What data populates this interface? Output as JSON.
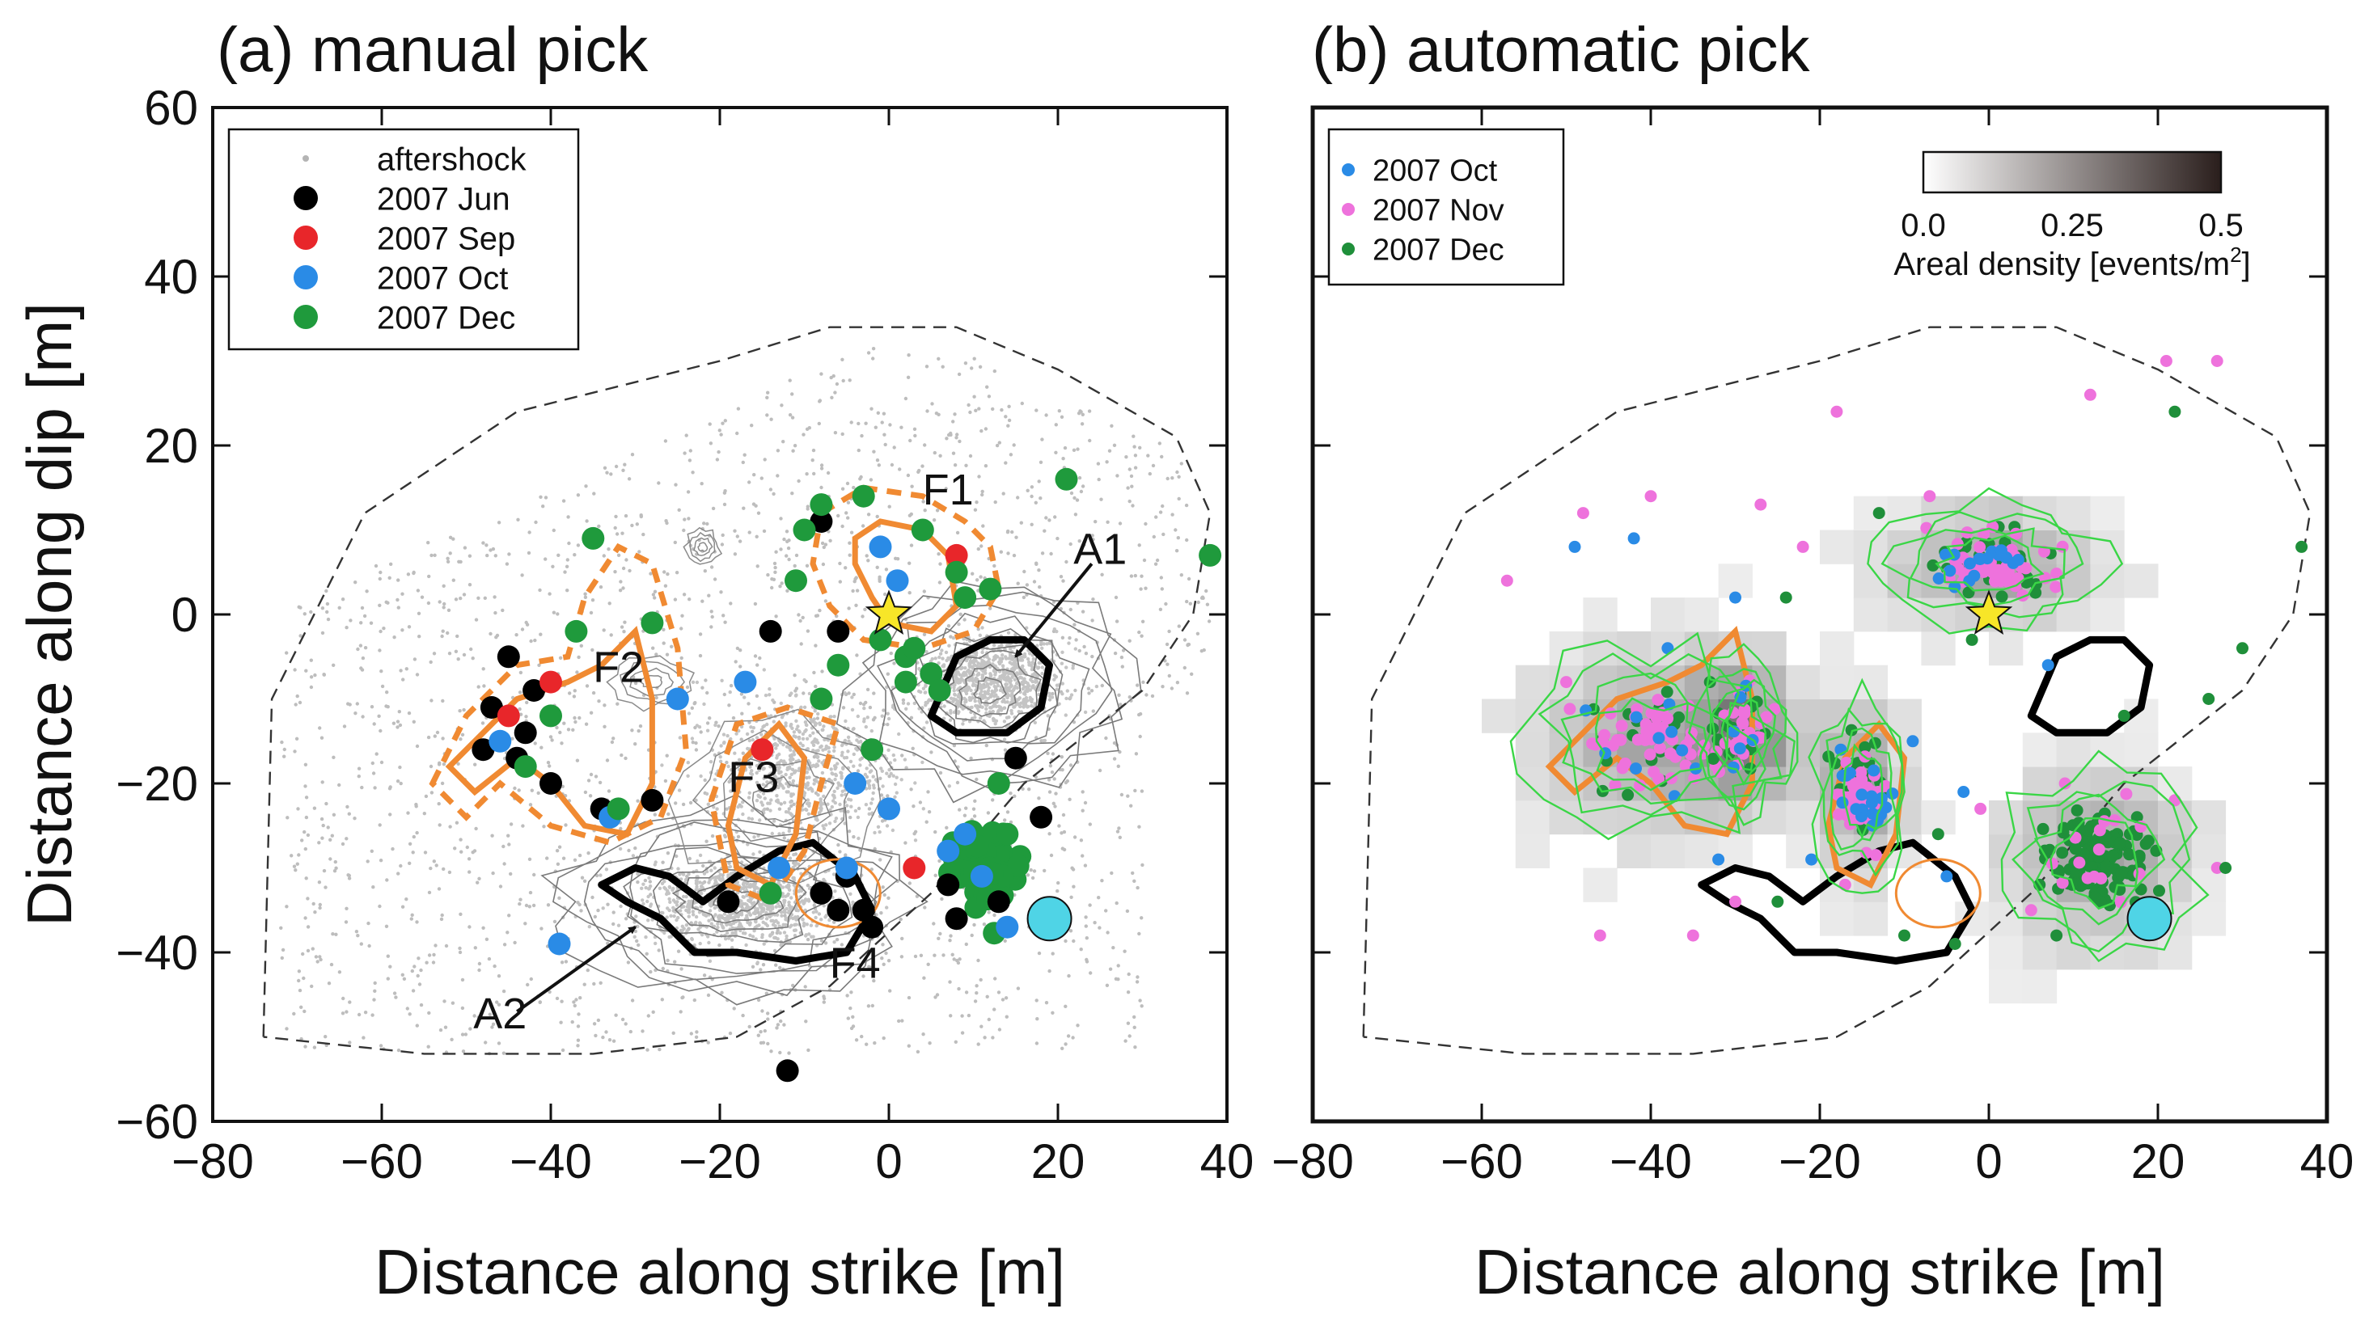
{
  "chart_data": [
    {
      "type": "scatter",
      "panel_title": "(a) manual pick",
      "xlabel": "Distance along strike [m]",
      "ylabel": "Distance along dip [m]",
      "xlim": [
        -80,
        40
      ],
      "ylim": [
        -60,
        60
      ],
      "x_ticks": [
        -80,
        -60,
        -40,
        -20,
        0,
        20,
        40
      ],
      "y_ticks": [
        -60,
        -40,
        -20,
        0,
        20,
        40,
        60
      ],
      "legend_position": "top-left",
      "legend": [
        {
          "label": "aftershock",
          "color": "#b4b4b4",
          "marker": "small-dot"
        },
        {
          "label": "2007 Jun",
          "color": "#000000",
          "marker": "dot"
        },
        {
          "label": "2007 Sep",
          "color": "#e8262a",
          "marker": "dot"
        },
        {
          "label": "2007 Oct",
          "color": "#2a8be6",
          "marker": "dot"
        },
        {
          "label": "2007 Dec",
          "color": "#1f9a3c",
          "marker": "dot"
        }
      ],
      "series": [
        {
          "name": "2007 Jun",
          "color": "#000000",
          "points": [
            [
              -47,
              -11
            ],
            [
              -45,
              -5
            ],
            [
              -42,
              -9
            ],
            [
              -48,
              -16
            ],
            [
              -44,
              -17
            ],
            [
              -40,
              -20
            ],
            [
              -43,
              -14
            ],
            [
              -34,
              -23
            ],
            [
              -28,
              -22
            ],
            [
              -19,
              -34
            ],
            [
              -14,
              -2
            ],
            [
              -8,
              11
            ],
            [
              -8,
              -33
            ],
            [
              -5,
              -31
            ],
            [
              -6,
              -35
            ],
            [
              -3,
              -35
            ],
            [
              -2,
              -37
            ],
            [
              -12,
              -54
            ],
            [
              7,
              -32
            ],
            [
              13,
              -34
            ],
            [
              15,
              -17
            ],
            [
              18,
              -24
            ],
            [
              -6,
              -2
            ],
            [
              8,
              -36
            ]
          ]
        },
        {
          "name": "2007 Sep",
          "color": "#e8262a",
          "points": [
            [
              -45,
              -12
            ],
            [
              -40,
              -8
            ],
            [
              -15,
              -16
            ],
            [
              3,
              -30
            ],
            [
              8,
              7
            ]
          ]
        },
        {
          "name": "2007 Oct",
          "color": "#2a8be6",
          "points": [
            [
              -46,
              -15
            ],
            [
              -33,
              -24
            ],
            [
              -39,
              -39
            ],
            [
              -17,
              -8
            ],
            [
              -5,
              -30
            ],
            [
              -4,
              -20
            ],
            [
              0,
              -23
            ],
            [
              -1,
              8
            ],
            [
              1,
              4
            ],
            [
              9,
              -26
            ],
            [
              11,
              -31
            ],
            [
              14,
              -37
            ],
            [
              7,
              -28
            ],
            [
              -13,
              -30
            ],
            [
              -25,
              -10
            ]
          ]
        },
        {
          "name": "2007 Dec",
          "color": "#1f9a3c",
          "points": [
            [
              -43,
              -18
            ],
            [
              -40,
              -12
            ],
            [
              -37,
              -2
            ],
            [
              -35,
              9
            ],
            [
              -32,
              -23
            ],
            [
              -28,
              -1
            ],
            [
              -14,
              -33
            ],
            [
              -8,
              13
            ],
            [
              -3,
              14
            ],
            [
              -6,
              -6
            ],
            [
              -2,
              -16
            ],
            [
              2,
              -5
            ],
            [
              -1,
              -3
            ],
            [
              3,
              -4
            ],
            [
              5,
              -7
            ],
            [
              9,
              2
            ],
            [
              12,
              3
            ],
            [
              -11,
              4
            ],
            [
              -10,
              10
            ],
            [
              4,
              10
            ],
            [
              8,
              5
            ],
            [
              13,
              -20
            ],
            [
              14,
              -26
            ],
            [
              21,
              16
            ],
            [
              38,
              7
            ],
            [
              -8,
              -10
            ],
            [
              6,
              -9
            ],
            [
              2,
              -8
            ]
          ]
        }
      ],
      "dense_cluster": {
        "name": "2007 Dec",
        "center": [
          12,
          -30
        ],
        "spread": [
          5,
          5
        ],
        "count": 70
      },
      "annotations": [
        {
          "text": "F1",
          "x": 7,
          "y": 13
        },
        {
          "text": "F2",
          "x": -32,
          "y": -8
        },
        {
          "text": "F3",
          "x": -16,
          "y": -21
        },
        {
          "text": "F4",
          "x": -4,
          "y": -43
        },
        {
          "text": "A1",
          "x": 25,
          "y": 6
        },
        {
          "text": "A2",
          "x": -46,
          "y": -49
        }
      ],
      "arrows": [
        {
          "from": [
            24,
            6
          ],
          "to": [
            15,
            -5
          ]
        },
        {
          "from": [
            -44,
            -47
          ],
          "to": [
            -30,
            -37
          ]
        }
      ],
      "markers": [
        {
          "type": "star",
          "x": 0,
          "y": 0,
          "color": "#f7e628"
        },
        {
          "type": "circle",
          "x": 19,
          "y": -36,
          "color": "#4fd4e6"
        }
      ]
    },
    {
      "type": "scatter",
      "panel_title": "(b) automatic pick",
      "xlabel": "Distance along strike [m]",
      "ylabel": "",
      "xlim": [
        -80,
        40
      ],
      "ylim": [
        -60,
        60
      ],
      "x_ticks": [
        -80,
        -60,
        -40,
        -20,
        0,
        20,
        40
      ],
      "legend_position": "top-left",
      "legend": [
        {
          "label": "2007 Oct",
          "color": "#2a8be6",
          "marker": "dot"
        },
        {
          "label": "2007 Nov",
          "color": "#ee72dc",
          "marker": "dot"
        },
        {
          "label": "2007 Dec",
          "color": "#1f8f3a",
          "marker": "dot"
        }
      ],
      "colorbar": {
        "label": "Areal density [events/m",
        "label_sup": "2",
        "label_end": "]",
        "min": 0.0,
        "max": 0.5,
        "ticks": [
          "0.0",
          "0.25",
          "0.5"
        ]
      },
      "clusters": [
        {
          "center": [
            0,
            6
          ],
          "spread": [
            7,
            4
          ],
          "counts": {
            "2007 Oct": 18,
            "2007 Nov": 55,
            "2007 Dec": 30
          }
        },
        {
          "center": [
            -40,
            -15
          ],
          "spread": [
            8,
            6
          ],
          "counts": {
            "2007 Oct": 10,
            "2007 Nov": 50,
            "2007 Dec": 25
          }
        },
        {
          "center": [
            -29,
            -14
          ],
          "spread": [
            3,
            5
          ],
          "counts": {
            "2007 Oct": 6,
            "2007 Nov": 25,
            "2007 Dec": 15
          }
        },
        {
          "center": [
            -15,
            -21
          ],
          "spread": [
            3,
            6
          ],
          "counts": {
            "2007 Oct": 20,
            "2007 Nov": 40,
            "2007 Dec": 25
          }
        },
        {
          "center": [
            13,
            -29
          ],
          "spread": [
            6,
            6
          ],
          "counts": {
            "2007 Oct": 0,
            "2007 Nov": 15,
            "2007 Dec": 120
          }
        }
      ],
      "scattered": {
        "2007 Oct": [
          [
            -49,
            8
          ],
          [
            -42,
            9
          ],
          [
            -30,
            2
          ],
          [
            -5,
            -31
          ],
          [
            7,
            -6
          ],
          [
            -21,
            -29
          ],
          [
            -38,
            -4
          ],
          [
            -9,
            -15
          ],
          [
            -3,
            -21
          ],
          [
            -32,
            -29
          ]
        ],
        "2007 Nov": [
          [
            -57,
            4
          ],
          [
            -48,
            12
          ],
          [
            -40,
            14
          ],
          [
            -27,
            13
          ],
          [
            -18,
            24
          ],
          [
            -7,
            14
          ],
          [
            21,
            30
          ],
          [
            27,
            30
          ],
          [
            12,
            26
          ],
          [
            -22,
            8
          ],
          [
            -50,
            -8
          ],
          [
            -35,
            -38
          ],
          [
            -30,
            -34
          ],
          [
            -1,
            -23
          ],
          [
            9,
            -20
          ],
          [
            -17,
            -32
          ],
          [
            27,
            -30
          ],
          [
            22,
            -22
          ],
          [
            -46,
            -38
          ],
          [
            5,
            -35
          ]
        ],
        "2007 Dec": [
          [
            -25,
            -34
          ],
          [
            -2,
            -3
          ],
          [
            -13,
            12
          ],
          [
            37,
            8
          ],
          [
            30,
            -4
          ],
          [
            26,
            -10
          ],
          [
            22,
            24
          ],
          [
            6,
            -32
          ],
          [
            -10,
            -38
          ],
          [
            -4,
            -39
          ],
          [
            8,
            -38
          ],
          [
            -24,
            2
          ],
          [
            -33,
            -8
          ],
          [
            16,
            -12
          ],
          [
            28,
            -30
          ],
          [
            -6,
            -26
          ]
        ]
      },
      "markers": [
        {
          "type": "star",
          "x": 0,
          "y": 0,
          "color": "#f7e628"
        },
        {
          "type": "circle",
          "x": 19,
          "y": -36,
          "color": "#4fd4e6"
        }
      ]
    }
  ]
}
